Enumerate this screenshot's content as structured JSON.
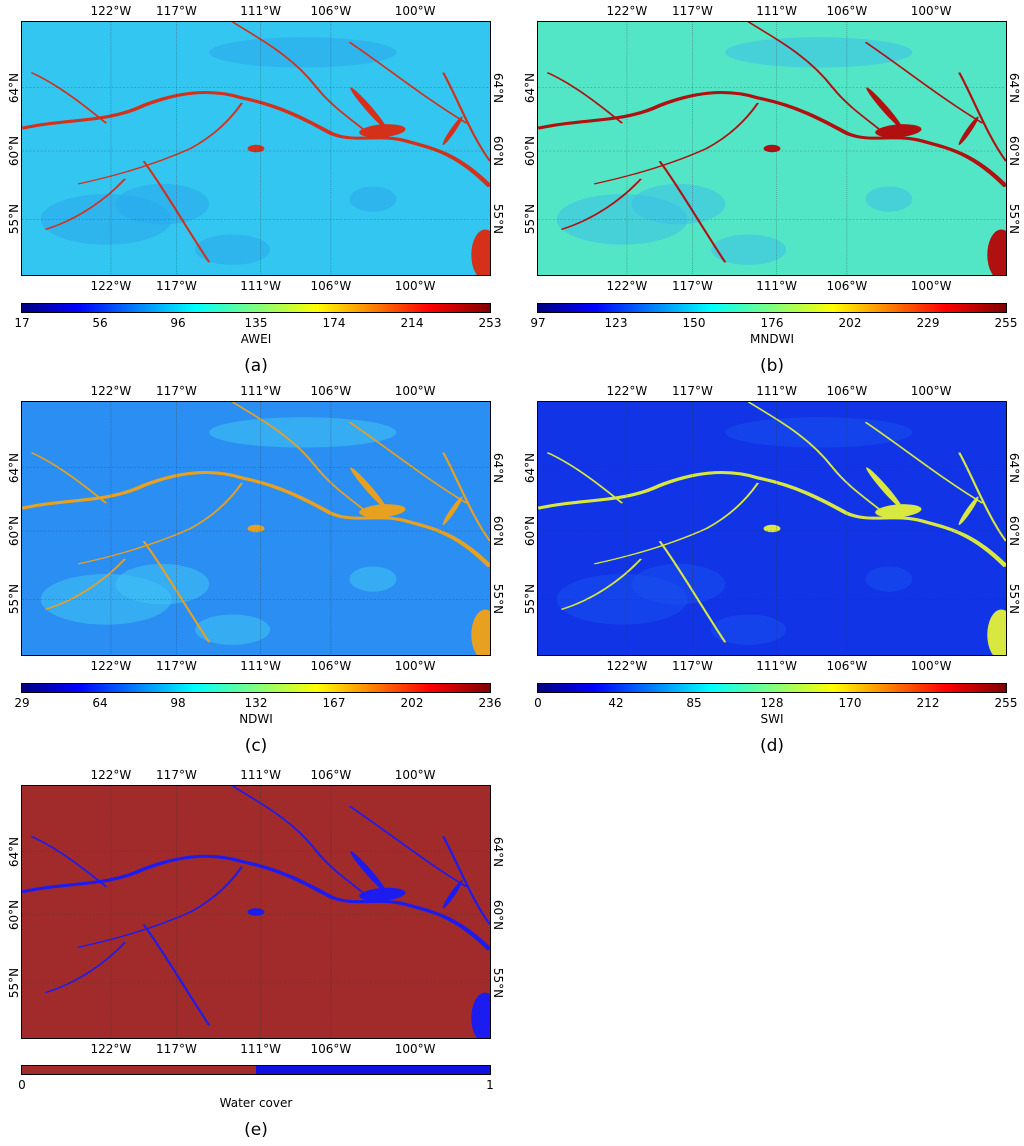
{
  "lon_labels": [
    "122°W",
    "117°W",
    "111°W",
    "106°W",
    "100°W"
  ],
  "lat_labels": [
    "64°N",
    "60°N",
    "55°N"
  ],
  "panels": [
    {
      "id": "a",
      "caption": "(a)",
      "index_name": "AWEI",
      "ticks": [
        "17",
        "56",
        "96",
        "135",
        "174",
        "214",
        "253"
      ],
      "colormap": "jet",
      "background": "#33c6f0",
      "land_tint": "#2aa8ec",
      "water": "#d4301a"
    },
    {
      "id": "b",
      "caption": "(b)",
      "index_name": "MNDWI",
      "ticks": [
        "97",
        "123",
        "150",
        "176",
        "202",
        "229",
        "255"
      ],
      "colormap": "jet",
      "background": "#53e6c6",
      "land_tint": "#3cc0e8",
      "water": "#b01010"
    },
    {
      "id": "c",
      "caption": "(c)",
      "index_name": "NDWI",
      "ticks": [
        "29",
        "64",
        "98",
        "132",
        "167",
        "202",
        "236"
      ],
      "colormap": "jet",
      "background": "#2b8ef2",
      "land_tint": "#40c4f4",
      "water": "#e8a020"
    },
    {
      "id": "d",
      "caption": "(d)",
      "index_name": "SWI",
      "ticks": [
        "0",
        "42",
        "85",
        "128",
        "170",
        "212",
        "255"
      ],
      "colormap": "jet",
      "background": "#1034e6",
      "land_tint": "#1a50ee",
      "water": "#d8e840"
    },
    {
      "id": "e",
      "caption": "(e)",
      "index_name": "Water cover",
      "ticks": [
        "0",
        "1"
      ],
      "colormap": "binary",
      "background": "#a12a2a",
      "land_tint": "#a12a2a",
      "water": "#1c1cf0",
      "binary_colors": [
        "#a12a2a",
        "#1010e0"
      ]
    }
  ]
}
